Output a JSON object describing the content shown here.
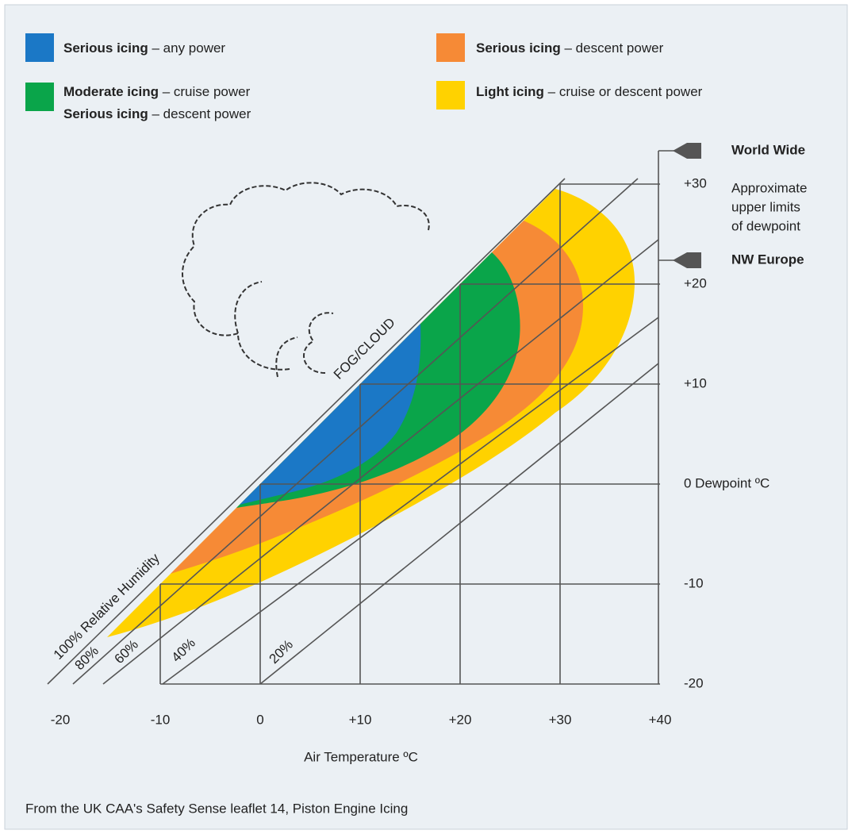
{
  "legend": [
    {
      "label": "Serious icing",
      "text": "– any power",
      "color": "#1b78c6"
    },
    {
      "label": "Moderate icing",
      "text": "– cruise power",
      "label2": "Serious icing",
      "text2": "– descent power",
      "color": "#0aa54a"
    },
    {
      "label": "Serious icing",
      "text": "– descent power",
      "color": "#f68a36"
    },
    {
      "label": "Light icing",
      "text": "– cruise or descent power",
      "color": "#ffd200"
    }
  ],
  "x_axis": {
    "title": "Air Temperature ºC",
    "ticks": [
      -20,
      -10,
      0,
      {
        "value": 10,
        "label": "+10"
      },
      {
        "value": 20,
        "label": "+20"
      },
      {
        "value": 30,
        "label": "+30"
      },
      {
        "value": 40,
        "label": "+40"
      }
    ]
  },
  "y_axis": {
    "ticks": [
      -20,
      -10,
      {
        "value": 0,
        "label": "0 Dewpoint ºC"
      },
      {
        "value": 10,
        "label": "+10"
      },
      {
        "value": 20,
        "label": "+20"
      },
      {
        "value": 30,
        "label": "+30"
      }
    ]
  },
  "dewpoint_limits": [
    "World Wide",
    "NW Europe"
  ],
  "limits_note": [
    "Approximate",
    "upper limits",
    "of dewpoint"
  ],
  "humidity_labels": [
    "100% Relative Humidity",
    "80%",
    "60%",
    "40%",
    "20%"
  ],
  "region_label": "FOG/CLOUD",
  "source": "From the UK CAA's Safety Sense leaflet 14, Piston Engine Icing"
}
